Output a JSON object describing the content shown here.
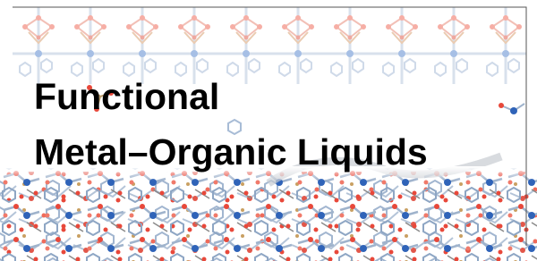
{
  "title_lines": [
    "Functional",
    "Metal–Organic Liquids"
  ]
}
